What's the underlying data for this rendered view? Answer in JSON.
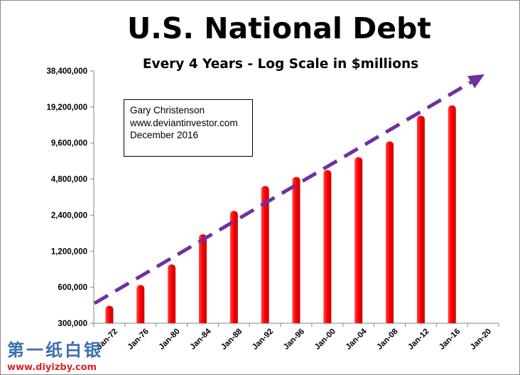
{
  "chart_data": {
    "type": "bar",
    "title": "U.S. National Debt",
    "subtitle": "Every 4 Years - Log Scale in $millions",
    "xlabel": "",
    "ylabel": "",
    "y_scale": "log",
    "ylim": [
      300000,
      38400000
    ],
    "grid": false,
    "legend": "none",
    "y_ticks": [
      300000,
      600000,
      1200000,
      2400000,
      4800000,
      9600000,
      19200000,
      38400000
    ],
    "y_tick_labels": [
      "300,000",
      "600,000",
      "1,200,000",
      "2,400,000",
      "4,800,000",
      "9,600,000",
      "19,200,000",
      "38,400,000"
    ],
    "categories": [
      "Jan-72",
      "Jan-76",
      "Jan-80",
      "Jan-84",
      "Jan-88",
      "Jan-92",
      "Jan-96",
      "Jan-00",
      "Jan-04",
      "Jan-08",
      "Jan-12",
      "Jan-16",
      "Jan-20"
    ],
    "values": [
      420000,
      625000,
      930000,
      1660000,
      2600000,
      4200000,
      5000000,
      5700000,
      7300000,
      9900000,
      16200000,
      19800000,
      null
    ],
    "trend_line": {
      "start": [
        "Jan-72",
        440000
      ],
      "end": [
        "Jan-20",
        36000000
      ],
      "color": "#7030a0",
      "style": "dashed-arrow"
    },
    "annotation": [
      "Gary Christenson",
      "www.deviantinvestor.com",
      "December 2016"
    ],
    "colors": {
      "bar": "#ff0000",
      "trend": "#7030a0"
    }
  },
  "watermark": {
    "logo": "第一纸白银",
    "url": "www.diyizby.com"
  }
}
